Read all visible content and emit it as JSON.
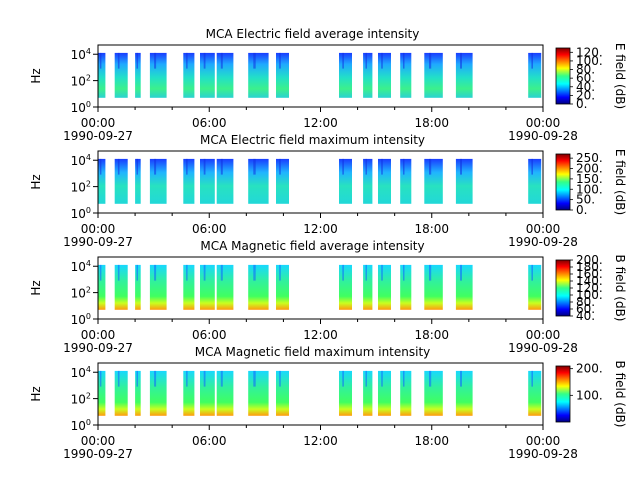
{
  "chart_data": [
    {
      "type": "heatmap",
      "title": "MCA  Electric field average intensity",
      "ylabel": "Hz",
      "colorbar_label": "E field (dB)",
      "colorbar_ticks": [
        "0.",
        "20.",
        "40.",
        "60.",
        "80.",
        "100.",
        "120."
      ],
      "colorbar_range": [
        0,
        130
      ],
      "level": "low",
      "peak_bands": [
        [
          0.2,
          0.6
        ]
      ]
    },
    {
      "type": "heatmap",
      "title": "MCA  Electric field maximum intensity",
      "ylabel": "Hz",
      "colorbar_label": "E field (dB)",
      "colorbar_ticks": [
        "0.",
        "50.",
        "100.",
        "150.",
        "200.",
        "250."
      ],
      "colorbar_range": [
        0,
        270
      ],
      "level": "mid"
    },
    {
      "type": "heatmap",
      "title": "MCA  Magnetic field average intensity",
      "ylabel": "Hz",
      "colorbar_label": "B field (dB)",
      "colorbar_ticks": [
        "40.",
        "60.",
        "80.",
        "100.",
        "120.",
        "140.",
        "160.",
        "180.",
        "200."
      ],
      "colorbar_range": [
        40,
        200
      ],
      "level": "mag"
    },
    {
      "type": "heatmap",
      "title": "MCA  Magnetic field maximum intensity",
      "ylabel": "Hz",
      "colorbar_label": "B field (dB)",
      "colorbar_ticks": [
        "100.",
        "200."
      ],
      "colorbar_range": [
        0,
        210
      ],
      "level": "mag"
    }
  ],
  "shared": {
    "x_range_hours": [
      0,
      24
    ],
    "x_ticks": [
      "00:00",
      "06:00",
      "12:00",
      "18:00",
      "00:00"
    ],
    "x_dates": [
      "1990-09-27",
      "1990-09-28"
    ],
    "y_ticks_exponents": [
      "4",
      "2",
      "0"
    ],
    "y_range_log10_hz": [
      0,
      4.7
    ],
    "data_coverage_hours": [
      [
        -0.1,
        0.4
      ],
      [
        0.9,
        1.6
      ],
      [
        2.0,
        2.3
      ],
      [
        2.8,
        3.7
      ],
      [
        4.6,
        5.2
      ],
      [
        5.5,
        6.3
      ],
      [
        6.4,
        7.3
      ],
      [
        8.1,
        9.2
      ],
      [
        9.6,
        10.3
      ],
      [
        13.0,
        13.7
      ],
      [
        14.3,
        14.8
      ],
      [
        15.1,
        15.8
      ],
      [
        16.3,
        16.9
      ],
      [
        17.6,
        18.6
      ],
      [
        19.3,
        20.2
      ],
      [
        23.2,
        23.9
      ]
    ]
  }
}
